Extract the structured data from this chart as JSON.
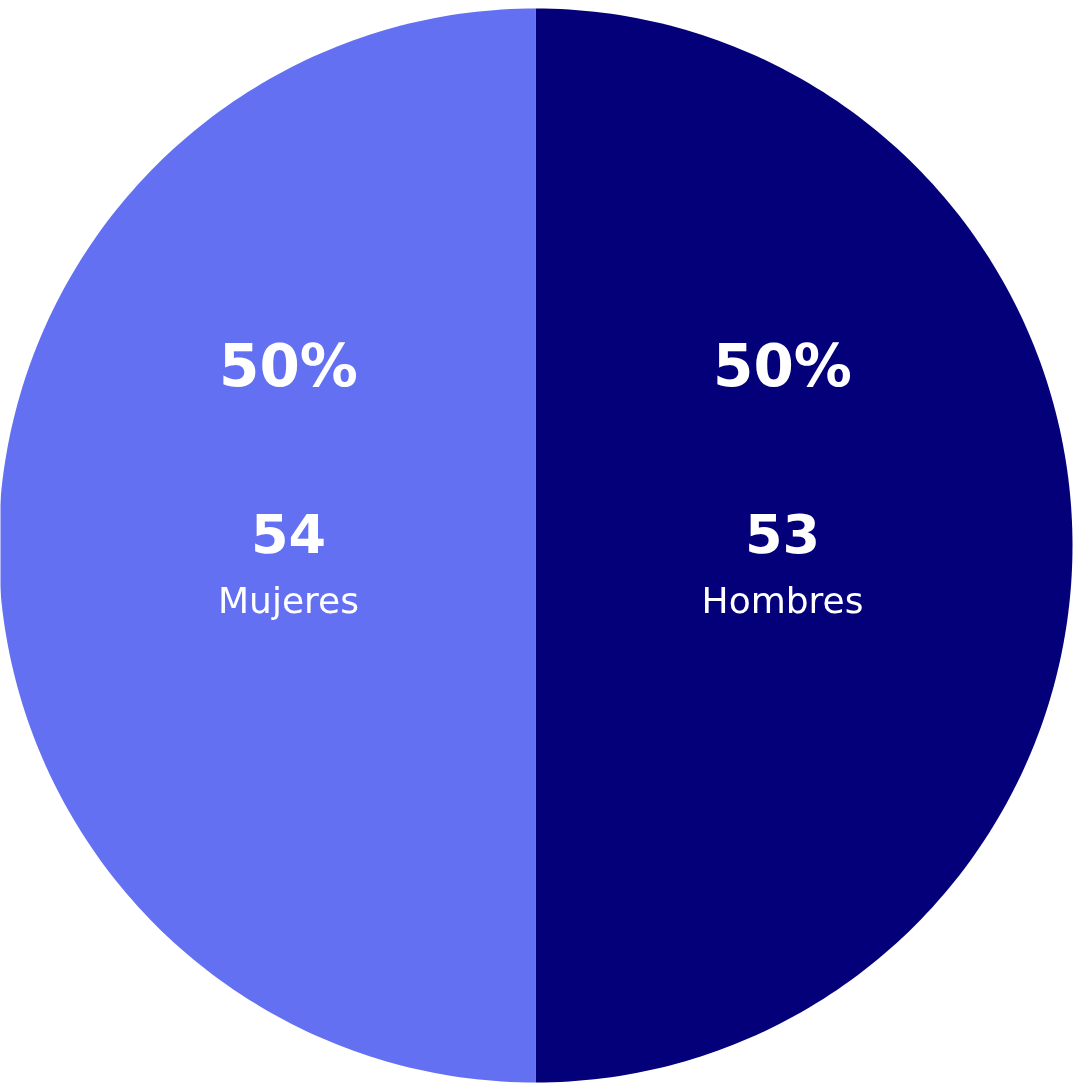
{
  "chart_data": {
    "type": "pie",
    "categories": [
      "Hombres",
      "Mujeres"
    ],
    "values": [
      50,
      50
    ],
    "colors": [
      "#03007a",
      "#6370f2"
    ],
    "value_labels": [
      "50%",
      "50%"
    ],
    "annotations": [
      {
        "text": "53",
        "x": "Hombres"
      },
      {
        "text": "54",
        "x": "Mujeres"
      }
    ]
  }
}
